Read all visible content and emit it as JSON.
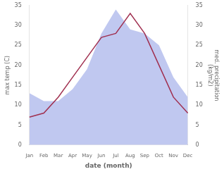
{
  "chart_data": {
    "type": "line",
    "xlabel": "date (month)",
    "ylabel": "max temp (C)",
    "y2label": "med. precipitation\n(kg/m2)",
    "categories": [
      "Jan",
      "Feb",
      "Mar",
      "Apr",
      "May",
      "Jun",
      "Jul",
      "Aug",
      "Sep",
      "Oct",
      "Nov",
      "Dec"
    ],
    "series": [
      {
        "type": "area",
        "axis": "y2",
        "color": "#c0c8f0",
        "values": [
          13,
          11,
          11,
          14,
          19,
          28,
          34,
          29,
          28,
          25,
          17,
          12
        ]
      },
      {
        "type": "line",
        "color": "#a03050",
        "values": [
          7,
          8,
          12,
          17,
          22,
          27,
          28,
          33,
          28,
          20,
          12,
          8
        ]
      }
    ],
    "ylim": [
      0,
      35
    ],
    "yticks": [
      0,
      5,
      10,
      15,
      20,
      25,
      30,
      35
    ],
    "y2lim": [
      0,
      35
    ],
    "y2ticks": [
      0,
      5,
      10,
      15,
      20,
      25,
      30,
      35
    ],
    "grid": false
  }
}
